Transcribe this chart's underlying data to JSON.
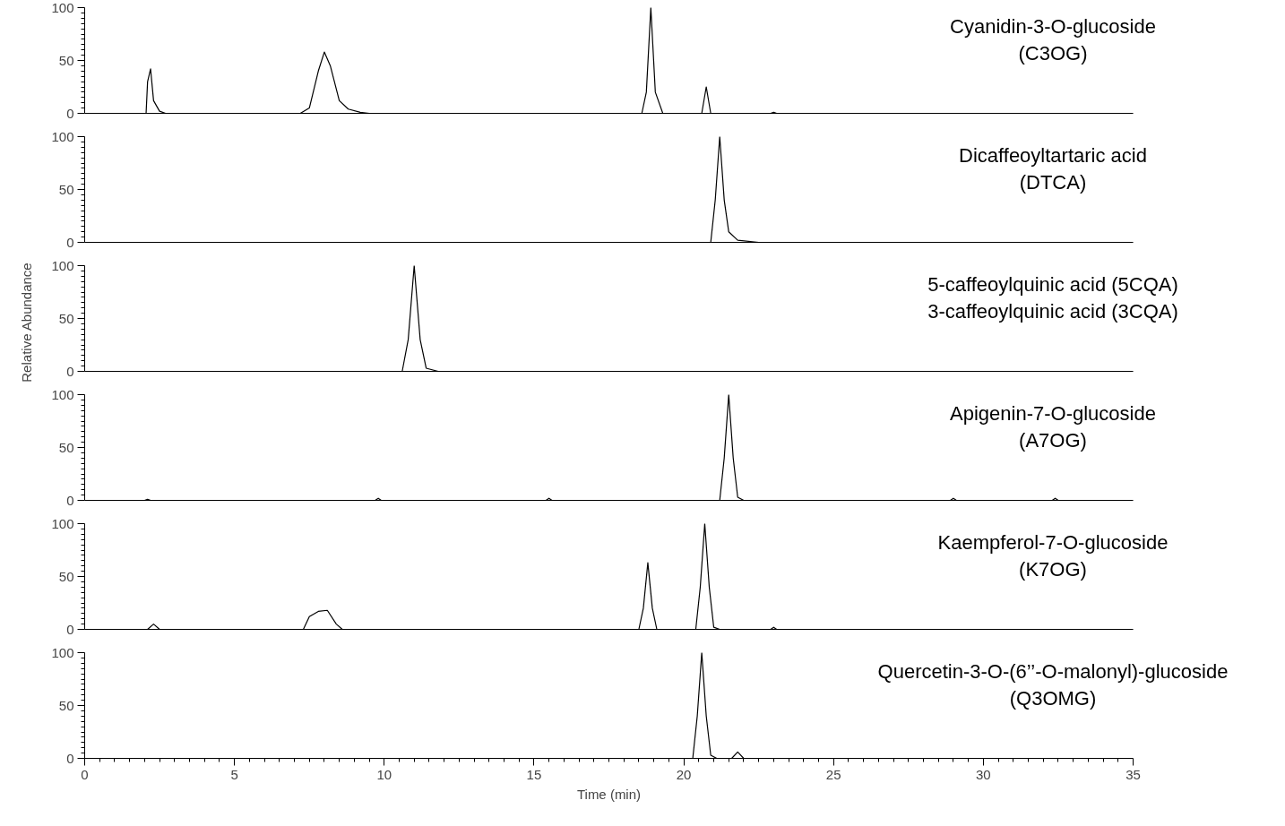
{
  "chart_data": [
    {
      "type": "line",
      "annotations": [
        "Cyanidin-3-O-glucoside",
        "(C3OG)"
      ],
      "xlim": [
        0,
        35
      ],
      "xticks": [
        0,
        5,
        10,
        15,
        20,
        25,
        30,
        35
      ],
      "ylim": [
        0,
        100
      ],
      "yticks": [
        0,
        50,
        100
      ],
      "tick_labels": "y",
      "series": [
        {
          "color": "#000000",
          "x": [
            0,
            2.05,
            2.1,
            2.2,
            2.3,
            2.5,
            2.7,
            7.2,
            7.5,
            7.8,
            8.0,
            8.2,
            8.5,
            8.8,
            9.2,
            9.5,
            18.6,
            18.75,
            18.9,
            19.05,
            19.3,
            20.6,
            20.75,
            20.9,
            22.9,
            23.0,
            23.1,
            35
          ],
          "values": [
            0,
            0,
            30,
            42,
            12,
            2,
            0,
            0,
            5,
            40,
            58,
            45,
            12,
            4,
            1,
            0,
            0,
            20,
            100,
            20,
            0,
            0,
            25,
            0,
            0,
            1,
            0,
            0
          ]
        }
      ]
    },
    {
      "type": "line",
      "annotations": [
        "Dicaffeoyltartaric acid",
        "(DTCA)"
      ],
      "xlim": [
        0,
        35
      ],
      "xticks": [
        0,
        5,
        10,
        15,
        20,
        25,
        30,
        35
      ],
      "ylim": [
        0,
        100
      ],
      "yticks": [
        0,
        50,
        100
      ],
      "tick_labels": "y",
      "series": [
        {
          "color": "#000000",
          "x": [
            0,
            20.9,
            21.05,
            21.2,
            21.35,
            21.5,
            21.8,
            22.5,
            35
          ],
          "values": [
            0,
            0,
            40,
            100,
            40,
            10,
            2,
            0,
            0
          ]
        }
      ]
    },
    {
      "type": "line",
      "annotations": [
        "5-caffeoylquinic acid (5CQA)",
        "3-caffeoylquinic acid (3CQA)"
      ],
      "ylabel": "Relative Abundance",
      "xlim": [
        0,
        35
      ],
      "xticks": [
        0,
        5,
        10,
        15,
        20,
        25,
        30,
        35
      ],
      "ylim": [
        0,
        100
      ],
      "yticks": [
        0,
        50,
        100
      ],
      "tick_labels": "y",
      "series": [
        {
          "color": "#000000",
          "x": [
            0,
            10.6,
            10.8,
            11.0,
            11.2,
            11.4,
            11.8,
            35
          ],
          "values": [
            0,
            0,
            30,
            100,
            30,
            3,
            0,
            0
          ]
        }
      ]
    },
    {
      "type": "line",
      "annotations": [
        "Apigenin-7-O-glucoside",
        "(A7OG)"
      ],
      "xlim": [
        0,
        35
      ],
      "xticks": [
        0,
        5,
        10,
        15,
        20,
        25,
        30,
        35
      ],
      "ylim": [
        0,
        100
      ],
      "yticks": [
        0,
        50,
        100
      ],
      "tick_labels": "y",
      "series": [
        {
          "color": "#000000",
          "x": [
            0,
            2.0,
            2.1,
            2.2,
            9.7,
            9.8,
            9.9,
            15.4,
            15.5,
            15.6,
            21.2,
            21.35,
            21.5,
            21.65,
            21.8,
            22.0,
            28.9,
            29.0,
            29.1,
            32.3,
            32.4,
            32.5,
            35
          ],
          "values": [
            0,
            0,
            1,
            0,
            0,
            2,
            0,
            0,
            2,
            0,
            0,
            40,
            100,
            40,
            3,
            0,
            0,
            2,
            0,
            0,
            2,
            0,
            0
          ]
        }
      ]
    },
    {
      "type": "line",
      "annotations": [
        "Kaempferol-7-O-glucoside",
        "(K7OG)"
      ],
      "xlim": [
        0,
        35
      ],
      "xticks": [
        0,
        5,
        10,
        15,
        20,
        25,
        30,
        35
      ],
      "ylim": [
        0,
        100
      ],
      "yticks": [
        0,
        50,
        100
      ],
      "tick_labels": "y",
      "series": [
        {
          "color": "#000000",
          "x": [
            0,
            2.1,
            2.3,
            2.5,
            7.3,
            7.5,
            7.8,
            8.1,
            8.4,
            8.6,
            18.5,
            18.65,
            18.8,
            18.95,
            19.1,
            20.4,
            20.55,
            20.7,
            20.85,
            21.0,
            21.2,
            22.9,
            23.0,
            23.1,
            35
          ],
          "values": [
            0,
            0,
            5,
            0,
            0,
            12,
            17,
            18,
            5,
            0,
            0,
            20,
            63,
            20,
            0,
            0,
            40,
            100,
            40,
            2,
            0,
            0,
            2,
            0,
            0
          ]
        }
      ]
    },
    {
      "type": "line",
      "annotations": [
        "Quercetin-3-O-(6’’-O-malonyl)-glucoside",
        "(Q3OMG)"
      ],
      "xlabel": "Time (min)",
      "xlim": [
        0,
        35
      ],
      "xticks": [
        0,
        5,
        10,
        15,
        20,
        25,
        30,
        35
      ],
      "ylim": [
        0,
        100
      ],
      "yticks": [
        0,
        50,
        100
      ],
      "series": [
        {
          "color": "#000000",
          "x": [
            0,
            20.3,
            20.45,
            20.6,
            20.75,
            20.9,
            21.1,
            21.6,
            21.8,
            22.0,
            35
          ],
          "values": [
            0,
            0,
            40,
            100,
            40,
            3,
            0,
            0,
            6,
            0,
            0
          ]
        }
      ]
    }
  ]
}
